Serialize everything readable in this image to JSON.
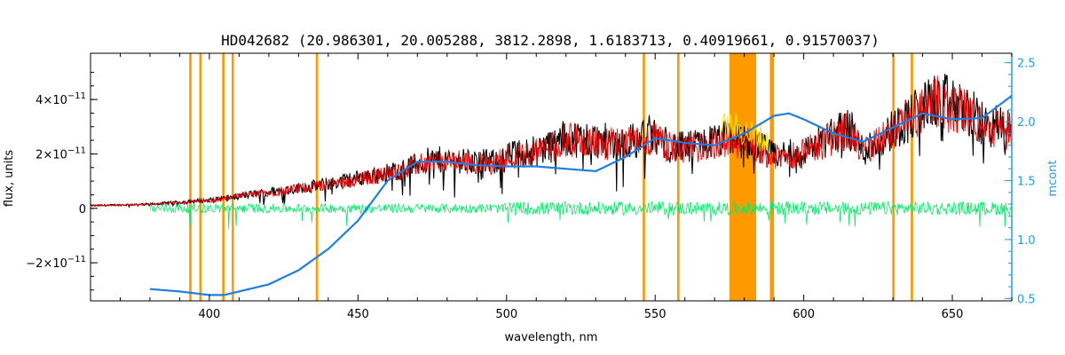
{
  "chart_data": {
    "type": "line",
    "title": "HD042682    (20.986301, 20.005288, 3812.2898, 1.6183713, 0.40919661, 0.91570037)",
    "xlabel": "wavelength, nm",
    "ylabel": "flux, units",
    "ylabel_right": "mcont",
    "xlim": [
      360,
      670
    ],
    "ylim": [
      -3.4e-11,
      5.7e-11
    ],
    "ylim_right": [
      0.48,
      2.58
    ],
    "x_ticks": [
      {
        "value": 400,
        "label": "400"
      },
      {
        "value": 450,
        "label": "450"
      },
      {
        "value": 500,
        "label": "500"
      },
      {
        "value": 550,
        "label": "550"
      },
      {
        "value": 600,
        "label": "600"
      },
      {
        "value": 650,
        "label": "650"
      }
    ],
    "y_ticks_left": [
      {
        "value": -2e-11,
        "mant": "−2×10",
        "exp": "−11"
      },
      {
        "value": 0,
        "mant": "0",
        "exp": ""
      },
      {
        "value": 2e-11,
        "mant": "2×10",
        "exp": "−11"
      },
      {
        "value": 4e-11,
        "mant": "4×10",
        "exp": "−11"
      }
    ],
    "y_ticks_right": [
      {
        "value": 0.5,
        "label": "0.5"
      },
      {
        "value": 1.0,
        "label": "1.0"
      },
      {
        "value": 1.5,
        "label": "1.5"
      },
      {
        "value": 2.0,
        "label": "2.0"
      },
      {
        "value": 2.5,
        "label": "2.5"
      }
    ],
    "masked_bands": [
      [
        393.2,
        394.0
      ],
      [
        396.6,
        397.4
      ],
      [
        404.3,
        405.1
      ],
      [
        407.5,
        408.2
      ],
      [
        435.8,
        436.6
      ],
      [
        545.8,
        546.6
      ],
      [
        557.4,
        558.2
      ],
      [
        575.0,
        584.0
      ],
      [
        588.6,
        590.0
      ],
      [
        629.8,
        630.6
      ],
      [
        636.0,
        636.8
      ]
    ],
    "observed_envelope": {
      "x": [
        360,
        380,
        400,
        420,
        440,
        460,
        475,
        495,
        500,
        515,
        520,
        540,
        548,
        555,
        560,
        575,
        585,
        590,
        600,
        615,
        620,
        635,
        645,
        655,
        660,
        670
      ],
      "y": [
        1e-12,
        1.5e-12,
        3e-12,
        6e-12,
        9e-12,
        1.3e-11,
        1.8e-11,
        1.7e-11,
        1.9e-11,
        2.3e-11,
        2.6e-11,
        2.4e-11,
        2.7e-11,
        2.3e-11,
        2.2e-11,
        2.6e-11,
        2.3e-11,
        1.9e-11,
        2.1e-11,
        3e-11,
        2.1e-11,
        3.3e-11,
        4e-11,
        3.6e-11,
        3.1e-11,
        2.9e-11
      ]
    },
    "residual_level": 0,
    "mcont": {
      "x": [
        380,
        390,
        400,
        405,
        410,
        420,
        430,
        440,
        450,
        460,
        470,
        480,
        490,
        500,
        510,
        520,
        530,
        540,
        550,
        560,
        570,
        580,
        590,
        595,
        600,
        610,
        620,
        630,
        640,
        650,
        660,
        670
      ],
      "y": [
        0.58,
        0.56,
        0.53,
        0.53,
        0.56,
        0.62,
        0.74,
        0.92,
        1.16,
        1.5,
        1.66,
        1.66,
        1.63,
        1.62,
        1.62,
        1.6,
        1.58,
        1.7,
        1.86,
        1.82,
        1.8,
        1.9,
        2.05,
        2.07,
        2.02,
        1.9,
        1.83,
        1.95,
        2.07,
        2.02,
        2.03,
        2.22
      ]
    },
    "grid": false,
    "colors": {
      "observed": "#000000",
      "model": "#ff0000",
      "residual": "#00ee66",
      "mcont": "#1f7fe0",
      "mask": "#ff9900",
      "highlight": "#ffdd00",
      "right_axis": "#1f9fe0"
    }
  }
}
